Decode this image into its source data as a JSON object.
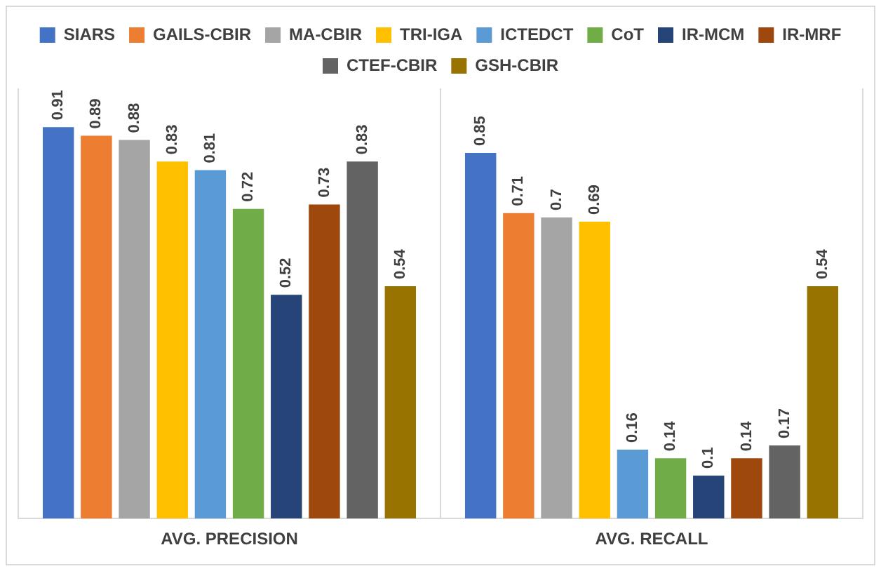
{
  "chart_data": {
    "type": "bar",
    "categories": [
      "AVG. PRECISION",
      "AVG. RECALL"
    ],
    "series": [
      {
        "name": "SIARS",
        "color": "#4472c4",
        "values": [
          0.91,
          0.85
        ]
      },
      {
        "name": "GAILS-CBIR",
        "color": "#ed7d31",
        "values": [
          0.89,
          0.71
        ]
      },
      {
        "name": "MA-CBIR",
        "color": "#a5a5a5",
        "values": [
          0.88,
          0.7
        ]
      },
      {
        "name": "TRI-IGA",
        "color": "#ffc000",
        "values": [
          0.83,
          0.69
        ]
      },
      {
        "name": "ICTEDCT",
        "color": "#5b9bd5",
        "values": [
          0.81,
          0.16
        ]
      },
      {
        "name": "CoT",
        "color": "#70ad47",
        "values": [
          0.72,
          0.14
        ]
      },
      {
        "name": "IR-MCM",
        "color": "#264478",
        "values": [
          0.52,
          0.1
        ]
      },
      {
        "name": "IR-MRF",
        "color": "#9e480e",
        "values": [
          0.73,
          0.14
        ]
      },
      {
        "name": "CTEF-CBIR",
        "color": "#636363",
        "values": [
          0.83,
          0.17
        ]
      },
      {
        "name": "GSH-CBIR",
        "color": "#997300",
        "values": [
          0.54,
          0.54
        ]
      }
    ],
    "data_labels": true,
    "legend": "top",
    "grid": "x",
    "tick_labels": "x"
  }
}
